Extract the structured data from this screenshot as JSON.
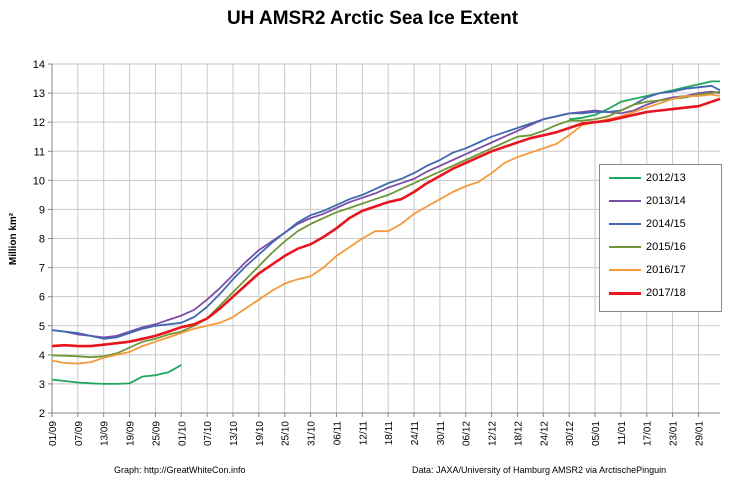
{
  "chart_data": {
    "type": "line",
    "title": "UH AMSR2 Arctic Sea Ice Extent",
    "xlabel": "",
    "ylabel": "Million km²",
    "ylim": [
      2,
      14
    ],
    "yticks": [
      2,
      3,
      4,
      5,
      6,
      7,
      8,
      9,
      10,
      11,
      12,
      13,
      14
    ],
    "xlim": [
      0,
      155
    ],
    "x_tick_labels": [
      "01/09",
      "07/09",
      "13/09",
      "19/09",
      "25/09",
      "01/10",
      "07/10",
      "13/10",
      "19/10",
      "25/10",
      "31/10",
      "06/11",
      "12/11",
      "18/11",
      "24/11",
      "30/11",
      "06/12",
      "12/12",
      "18/12",
      "24/12",
      "30/12",
      "05/01",
      "11/01",
      "17/01",
      "23/01",
      "29/01"
    ],
    "x_tick_positions": [
      0,
      6,
      12,
      18,
      24,
      30,
      36,
      42,
      48,
      54,
      60,
      66,
      72,
      78,
      84,
      90,
      96,
      102,
      108,
      114,
      120,
      126,
      132,
      138,
      144,
      150
    ],
    "grid": true,
    "legend_position": "right",
    "series": [
      {
        "name": "2012/13",
        "color": "#1fa85b",
        "x": [
          0,
          3,
          6,
          9,
          12,
          15,
          18,
          21,
          24,
          27,
          30,
          120,
          123,
          126,
          129,
          132,
          135,
          138,
          141,
          144,
          147,
          150,
          153,
          155
        ],
        "values": [
          3.15,
          3.1,
          3.05,
          3.02,
          3.0,
          3.0,
          3.02,
          3.25,
          3.3,
          3.4,
          3.65,
          12.1,
          12.15,
          12.25,
          12.45,
          12.7,
          12.8,
          12.9,
          13.0,
          13.1,
          13.2,
          13.3,
          13.4,
          13.4
        ]
      },
      {
        "name": "2013/14",
        "color": "#7b4fa8",
        "x": [
          0,
          3,
          6,
          9,
          12,
          15,
          18,
          21,
          24,
          27,
          30,
          33,
          36,
          39,
          42,
          45,
          48,
          51,
          54,
          57,
          60,
          63,
          66,
          69,
          72,
          75,
          78,
          81,
          84,
          87,
          90,
          93,
          96,
          99,
          102,
          105,
          108,
          111,
          114,
          117,
          120,
          123,
          126,
          129,
          132,
          135,
          138,
          141,
          144,
          147,
          150,
          153,
          155
        ],
        "values": [
          4.85,
          4.8,
          4.7,
          4.65,
          4.6,
          4.65,
          4.8,
          4.95,
          5.05,
          5.2,
          5.35,
          5.55,
          5.9,
          6.3,
          6.75,
          7.2,
          7.6,
          7.9,
          8.2,
          8.5,
          8.7,
          8.85,
          9.05,
          9.25,
          9.4,
          9.55,
          9.75,
          9.9,
          10.05,
          10.3,
          10.5,
          10.7,
          10.9,
          11.1,
          11.3,
          11.5,
          11.7,
          11.9,
          12.1,
          12.2,
          12.3,
          12.35,
          12.4,
          12.35,
          12.3,
          12.4,
          12.6,
          12.75,
          12.85,
          12.9,
          13.0,
          13.05,
          13.0
        ]
      },
      {
        "name": "2014/15",
        "color": "#4169b0",
        "x": [
          0,
          3,
          6,
          9,
          12,
          15,
          18,
          21,
          24,
          27,
          30,
          33,
          36,
          39,
          42,
          45,
          48,
          51,
          54,
          57,
          60,
          63,
          66,
          69,
          72,
          75,
          78,
          81,
          84,
          87,
          90,
          93,
          96,
          99,
          102,
          105,
          108,
          111,
          114,
          117,
          120,
          123,
          126,
          129,
          132,
          135,
          138,
          141,
          144,
          147,
          150,
          153,
          155
        ],
        "values": [
          4.85,
          4.8,
          4.75,
          4.65,
          4.55,
          4.6,
          4.75,
          4.9,
          5.0,
          5.05,
          5.1,
          5.3,
          5.65,
          6.1,
          6.6,
          7.05,
          7.45,
          7.85,
          8.2,
          8.55,
          8.8,
          8.95,
          9.15,
          9.35,
          9.5,
          9.7,
          9.9,
          10.05,
          10.25,
          10.5,
          10.7,
          10.95,
          11.1,
          11.3,
          11.5,
          11.65,
          11.8,
          11.95,
          12.1,
          12.2,
          12.3,
          12.3,
          12.35,
          12.35,
          12.4,
          12.6,
          12.85,
          13.0,
          13.05,
          13.15,
          13.2,
          13.25,
          13.1
        ]
      },
      {
        "name": "2015/16",
        "color": "#70963a",
        "x": [
          0,
          3,
          6,
          9,
          12,
          15,
          18,
          21,
          24,
          27,
          30,
          33,
          36,
          39,
          42,
          45,
          48,
          51,
          54,
          57,
          60,
          63,
          66,
          69,
          72,
          75,
          78,
          81,
          84,
          87,
          90,
          93,
          96,
          99,
          102,
          105,
          108,
          111,
          114,
          117,
          120,
          123,
          126,
          129,
          132,
          135,
          138,
          141,
          144,
          147,
          150,
          153,
          155
        ],
        "values": [
          3.98,
          3.97,
          3.95,
          3.92,
          3.95,
          4.05,
          4.25,
          4.45,
          4.55,
          4.7,
          4.8,
          5.0,
          5.25,
          5.7,
          6.15,
          6.6,
          7.05,
          7.5,
          7.9,
          8.25,
          8.5,
          8.7,
          8.9,
          9.05,
          9.2,
          9.35,
          9.5,
          9.7,
          9.9,
          10.1,
          10.3,
          10.5,
          10.7,
          10.9,
          11.1,
          11.3,
          11.5,
          11.55,
          11.7,
          11.9,
          12.05,
          12.05,
          12.1,
          12.2,
          12.4,
          12.6,
          12.7,
          12.75,
          12.8,
          12.85,
          12.95,
          13.0,
          13.05
        ]
      },
      {
        "name": "2016/17",
        "color": "#f59a3c",
        "x": [
          0,
          3,
          6,
          9,
          12,
          15,
          18,
          21,
          24,
          27,
          30,
          33,
          36,
          39,
          42,
          45,
          48,
          51,
          54,
          57,
          60,
          63,
          66,
          69,
          72,
          75,
          78,
          81,
          84,
          87,
          90,
          93,
          96,
          99,
          102,
          105,
          108,
          111,
          114,
          117,
          120,
          123,
          126,
          129,
          132,
          135,
          138,
          141,
          144,
          147,
          150,
          153,
          155
        ],
        "values": [
          3.8,
          3.72,
          3.7,
          3.75,
          3.9,
          4.0,
          4.1,
          4.3,
          4.45,
          4.6,
          4.75,
          4.9,
          5.0,
          5.1,
          5.3,
          5.6,
          5.9,
          6.2,
          6.45,
          6.6,
          6.7,
          7.0,
          7.4,
          7.7,
          8.0,
          8.25,
          8.25,
          8.5,
          8.85,
          9.1,
          9.35,
          9.6,
          9.8,
          9.95,
          10.25,
          10.6,
          10.8,
          10.95,
          11.1,
          11.25,
          11.55,
          11.9,
          12.0,
          12.1,
          12.2,
          12.35,
          12.5,
          12.65,
          12.8,
          12.9,
          12.9,
          12.95,
          12.9
        ]
      },
      {
        "name": "2017/18",
        "color": "#e8141e",
        "x": [
          0,
          3,
          6,
          9,
          12,
          15,
          18,
          21,
          24,
          27,
          30,
          33,
          36,
          39,
          42,
          45,
          48,
          51,
          54,
          57,
          60,
          63,
          66,
          69,
          72,
          75,
          78,
          81,
          84,
          87,
          90,
          93,
          96,
          99,
          102,
          105,
          108,
          111,
          114,
          117,
          120,
          123,
          126,
          129,
          132,
          135,
          138,
          141,
          144,
          147,
          150,
          153,
          155
        ],
        "values": [
          4.3,
          4.33,
          4.3,
          4.3,
          4.35,
          4.4,
          4.45,
          4.55,
          4.65,
          4.8,
          4.95,
          5.05,
          5.25,
          5.6,
          6.0,
          6.4,
          6.8,
          7.1,
          7.4,
          7.65,
          7.8,
          8.05,
          8.35,
          8.7,
          8.95,
          9.1,
          9.25,
          9.35,
          9.6,
          9.9,
          10.15,
          10.4,
          10.6,
          10.8,
          11.0,
          11.15,
          11.3,
          11.45,
          11.55,
          11.65,
          11.8,
          11.95,
          12.0,
          12.05,
          12.15,
          12.25,
          12.35,
          12.4,
          12.45,
          12.5,
          12.55,
          12.7,
          12.8
        ]
      }
    ]
  },
  "footer": {
    "left": "Graph: http://GreatWhiteCon.info",
    "right": "Data: JAXA/University of Hamburg AMSR2 via  ArctischePinguin"
  }
}
